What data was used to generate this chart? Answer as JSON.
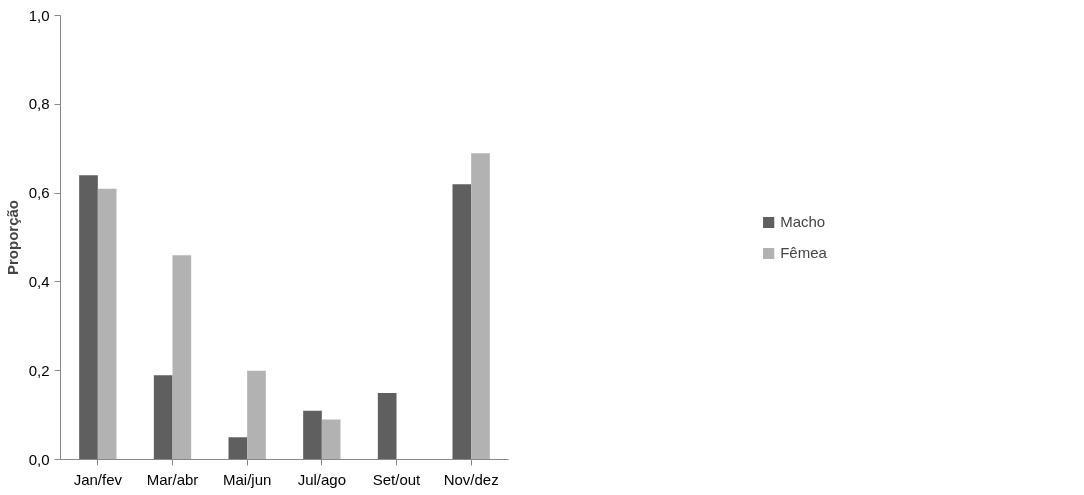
{
  "chart_data": {
    "type": "bar",
    "ylabel": "Proporção",
    "categories": [
      "Jan/fev",
      "Mar/abr",
      "Mai/jun",
      "Jul/ago",
      "Set/out",
      "Nov/dez"
    ],
    "series": [
      {
        "name": "Macho",
        "color": "#5f5f5f",
        "values": [
          0.64,
          0.19,
          0.05,
          0.11,
          0.15,
          0.62
        ]
      },
      {
        "name": "Fêmea",
        "color": "#b2b2b2",
        "values": [
          0.61,
          0.46,
          0.2,
          0.09,
          0,
          0.69
        ]
      }
    ],
    "ylim": [
      0,
      1
    ],
    "yticks": [
      {
        "value": 0,
        "label": "0,0"
      },
      {
        "value": 0.2,
        "label": "0,2"
      },
      {
        "value": 0.4,
        "label": "0,4"
      },
      {
        "value": 0.6,
        "label": "0,6"
      },
      {
        "value": 0.8,
        "label": "0,8"
      },
      {
        "value": 1,
        "label": "1,0"
      }
    ],
    "grid": false,
    "legend": "right"
  }
}
